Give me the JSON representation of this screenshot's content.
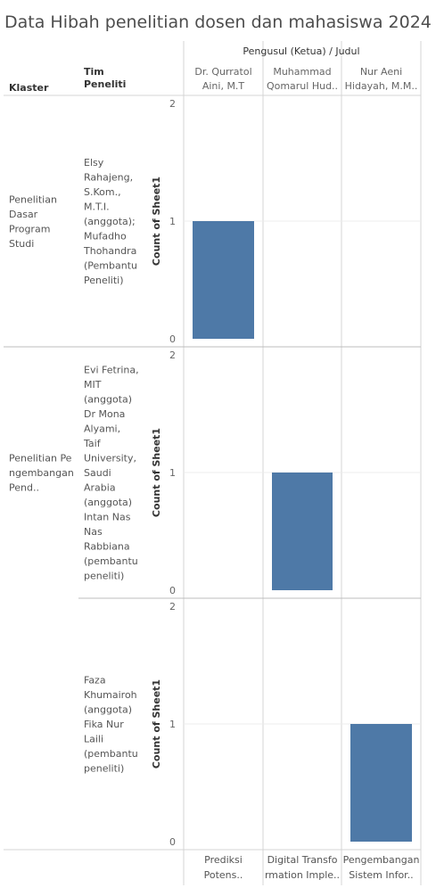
{
  "chart_data": {
    "type": "bar",
    "title": "Data Hibah penelitian dosen dan mahasiswa 2024",
    "column_group_header": "Pengusul (Ketua)  /  Judul",
    "row_headers": [
      "Klaster",
      "Tim\nPeneliti"
    ],
    "ylabel": "Count of Sheet1",
    "ylim": [
      0,
      2
    ],
    "yticks": [
      0,
      1,
      2
    ],
    "columns": [
      {
        "pengusul": "Dr. Qurratol\nAini, M.T",
        "judul": "Prediksi\nPotens.."
      },
      {
        "pengusul": "Muhammad\nQomarul Hud..",
        "judul": "Digital Transfo\nrmation Imple.."
      },
      {
        "pengusul": "Nur Aeni\nHidayah, M.M..",
        "judul": "Pengembangan\nSistem Infor.."
      }
    ],
    "rows": [
      {
        "klaster": "Penelitian\nDasar\nProgram\nStudi",
        "tim": "Elsy\nRahajeng,\nS.Kom.,\nM.T.I.\n(anggota);\nMufadho\nThohandra\n(Pembantu\nPeneliti)"
      },
      {
        "klaster": "Penelitian Pe\nngembangan\nPend..",
        "tim": "Evi Fetrina,\nMIT\n(anggota)\nDr Mona\nAlyami,\nTaif\nUniversity,\nSaudi\nArabia\n(anggota)\nIntan Nas\nNas\nRabbiana\n(pembantu\npeneliti)"
      },
      {
        "klaster": "",
        "tim": "Faza\nKhumairoh\n(anggota)\nFika Nur\nLaili\n(pembantu\npeneliti)"
      }
    ],
    "values": [
      [
        1,
        0,
        0
      ],
      [
        0,
        1,
        0
      ],
      [
        0,
        0,
        1
      ]
    ],
    "bar_color": "#4e79a7"
  }
}
